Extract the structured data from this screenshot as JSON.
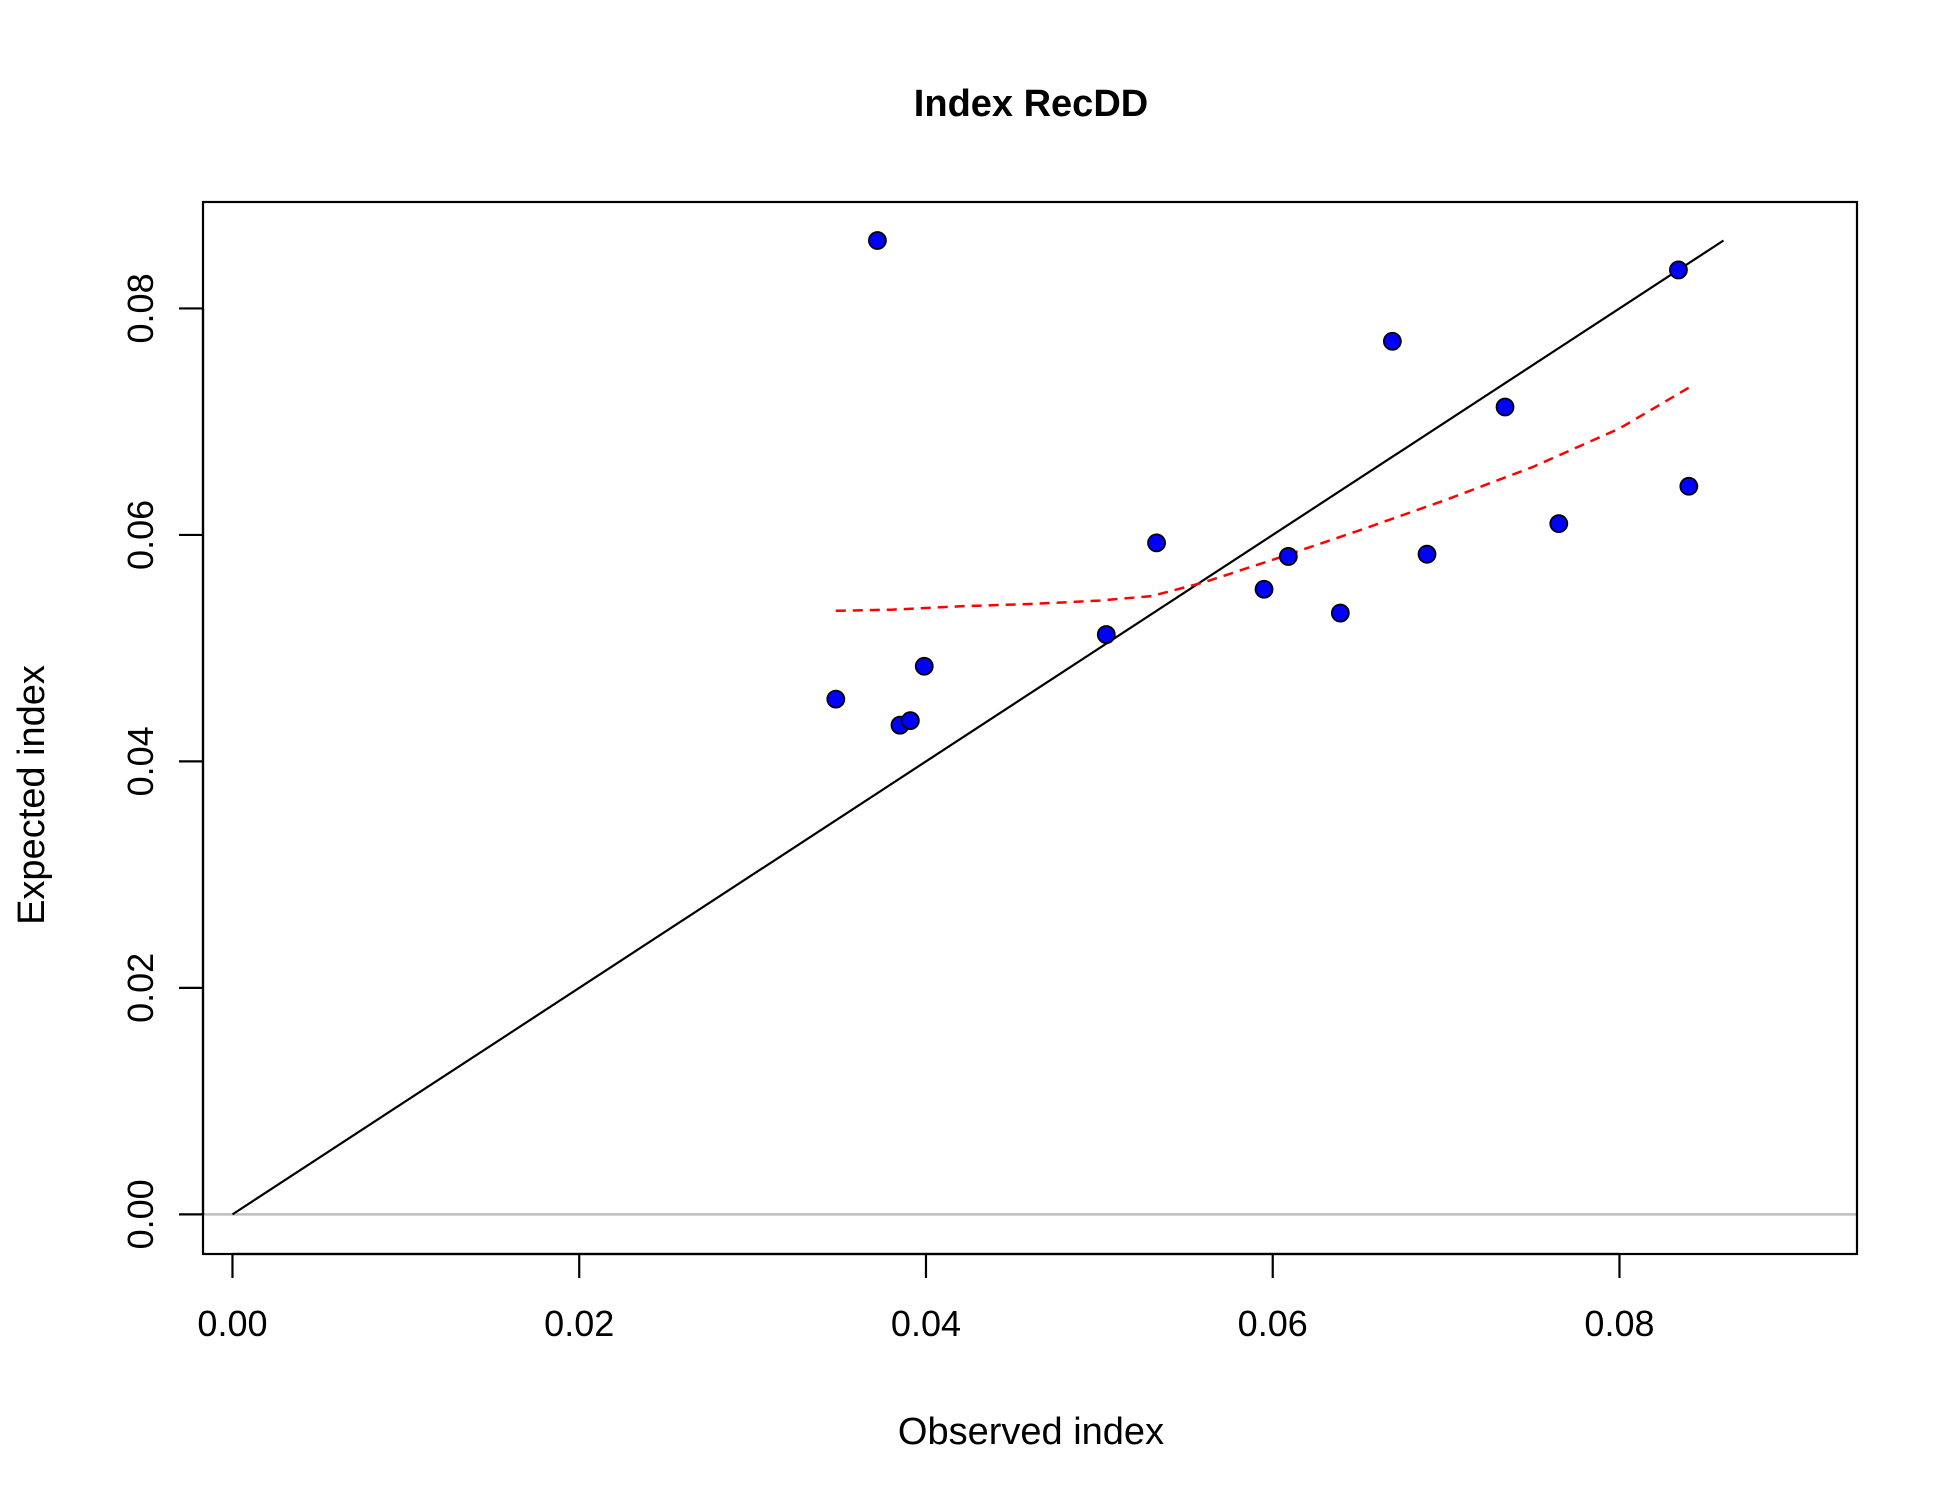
{
  "chart_data": {
    "type": "scatter",
    "title": "Index RecDD",
    "xlabel": "Observed index",
    "ylabel": "Expected index",
    "xlim": [
      -0.0017,
      0.0937
    ],
    "ylim": [
      -0.0035,
      0.0894
    ],
    "x_ticks": [
      0.0,
      0.02,
      0.04,
      0.06,
      0.08
    ],
    "x_tick_labels": [
      "0.00",
      "0.02",
      "0.04",
      "0.06",
      "0.08"
    ],
    "y_ticks": [
      0.0,
      0.02,
      0.04,
      0.06,
      0.08
    ],
    "y_tick_labels": [
      "0.00",
      "0.02",
      "0.04",
      "0.06",
      "0.08"
    ],
    "grid": false,
    "legend": "none",
    "points": [
      {
        "x": 0.0348,
        "y": 0.0455
      },
      {
        "x": 0.0372,
        "y": 0.086
      },
      {
        "x": 0.0385,
        "y": 0.0432
      },
      {
        "x": 0.0391,
        "y": 0.0436
      },
      {
        "x": 0.0399,
        "y": 0.0484
      },
      {
        "x": 0.0504,
        "y": 0.0512
      },
      {
        "x": 0.0533,
        "y": 0.0593
      },
      {
        "x": 0.0595,
        "y": 0.0552
      },
      {
        "x": 0.0609,
        "y": 0.0581
      },
      {
        "x": 0.0639,
        "y": 0.0531
      },
      {
        "x": 0.0669,
        "y": 0.0771
      },
      {
        "x": 0.0689,
        "y": 0.0583
      },
      {
        "x": 0.0734,
        "y": 0.0713
      },
      {
        "x": 0.0765,
        "y": 0.061
      },
      {
        "x": 0.0834,
        "y": 0.0834
      },
      {
        "x": 0.084,
        "y": 0.0643
      }
    ],
    "reference_line": {
      "x": [
        0.0,
        0.086
      ],
      "y": [
        0.0,
        0.086
      ]
    },
    "zero_line_y": 0.0,
    "smooth_curve": {
      "x": [
        0.0348,
        0.038,
        0.042,
        0.046,
        0.05,
        0.053,
        0.056,
        0.06,
        0.065,
        0.07,
        0.075,
        0.08,
        0.084
      ],
      "y": [
        0.0533,
        0.0534,
        0.0537,
        0.0539,
        0.0542,
        0.0546,
        0.0558,
        0.0578,
        0.0604,
        0.0631,
        0.066,
        0.0694,
        0.073
      ]
    },
    "colors": {
      "points_fill": "#0000ff",
      "points_stroke": "#000000",
      "reference_line": "#000000",
      "smooth_curve": "#ff0000",
      "zero_line": "#bebebe",
      "frame": "#000000"
    }
  }
}
